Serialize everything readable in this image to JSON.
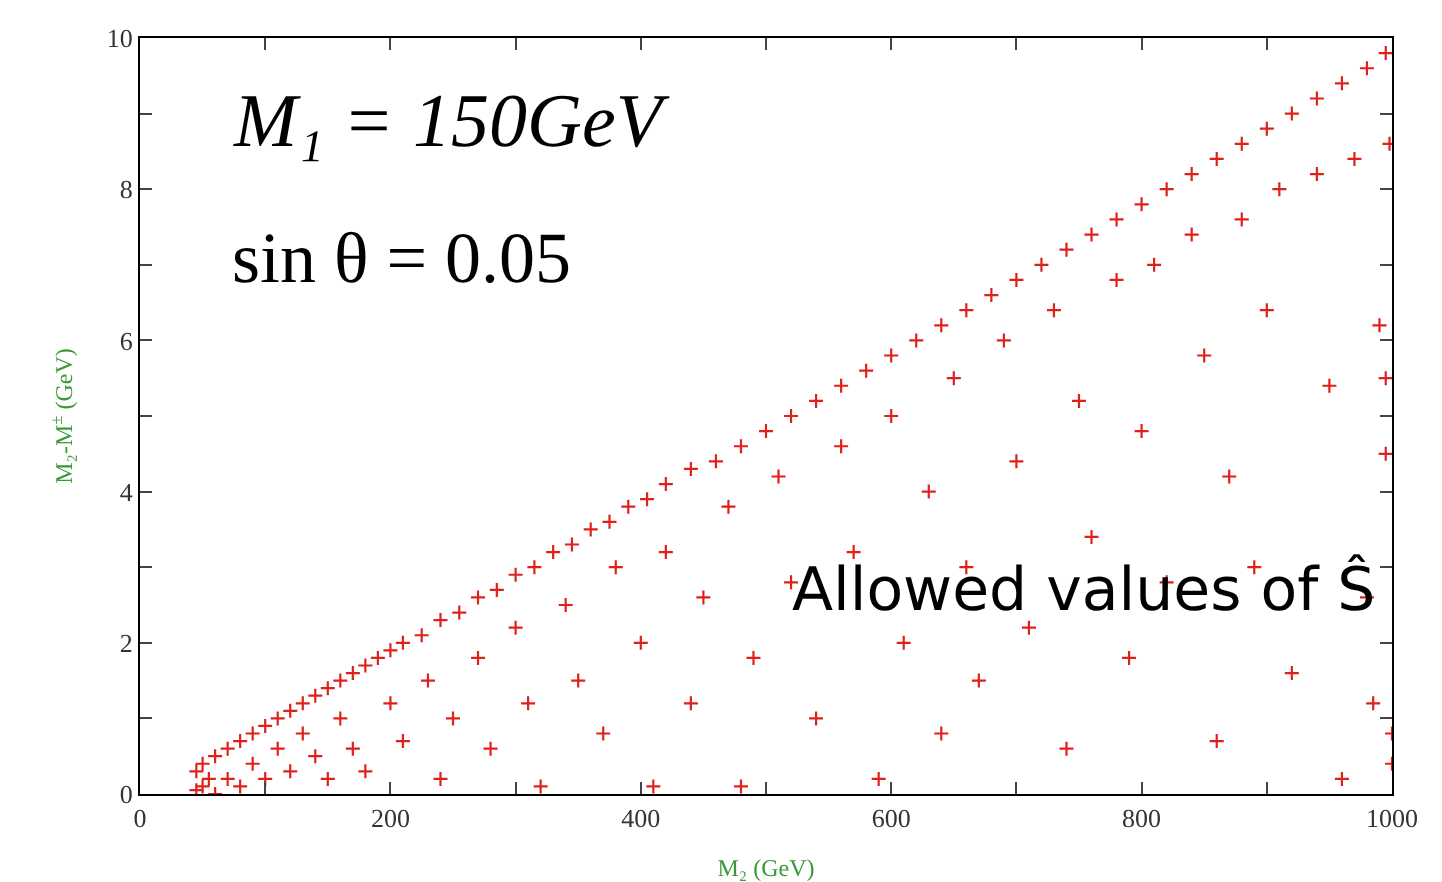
{
  "chart_data": {
    "type": "scatter",
    "xlabel": "M₂ (GeV)",
    "ylabel": "M₂-M$^{±}$ (GeV)",
    "annotations": [
      "M₁ = 150GeV",
      "sin θ = 0.05",
      "Allowed values of Ŝ"
    ],
    "xlim": [
      0,
      1000
    ],
    "ylim": [
      0,
      10
    ],
    "xticks": [
      0,
      {
        "value": 100,
        "label": null
      },
      200,
      {
        "value": 300,
        "label": null
      },
      400,
      {
        "value": 500,
        "label": null
      },
      600,
      {
        "value": 700,
        "label": null
      },
      800,
      {
        "value": 900,
        "label": null
      },
      1000
    ],
    "yticks": [
      0,
      {
        "value": 1,
        "label": null
      },
      2,
      {
        "value": 3,
        "label": null
      },
      4,
      {
        "value": 5,
        "label": null
      },
      6,
      {
        "value": 7,
        "label": null
      },
      8,
      {
        "value": 9,
        "label": null
      },
      10
    ],
    "grid": false,
    "marker": "cross",
    "series": [
      {
        "color": "#e0201b",
        "x": [
          45,
          50,
          60,
          70,
          80,
          90,
          100,
          110,
          120,
          130,
          140,
          150,
          160,
          170,
          180,
          190,
          200,
          210,
          225,
          240,
          255,
          270,
          285,
          300,
          315,
          330,
          345,
          360,
          375,
          390,
          405,
          420,
          440,
          460,
          480,
          500,
          520,
          540,
          560,
          580,
          600,
          620,
          640,
          660,
          680,
          700,
          720,
          740,
          760,
          780,
          800,
          820,
          840,
          860,
          880,
          900,
          920,
          940,
          960,
          980,
          995,
          45,
          50,
          55,
          60,
          70,
          80,
          90,
          100,
          110,
          120,
          130,
          140,
          150,
          160,
          170,
          180,
          200,
          210,
          230,
          240,
          250,
          270,
          280,
          300,
          310,
          320,
          340,
          350,
          370,
          380,
          400,
          410,
          420,
          440,
          450,
          470,
          480,
          490,
          510,
          520,
          540,
          560,
          570,
          590,
          600,
          610,
          630,
          640,
          650,
          660,
          670,
          690,
          700,
          710,
          730,
          740,
          750,
          760,
          780,
          790,
          800,
          810,
          820,
          840,
          850,
          860,
          870,
          880,
          890,
          900,
          910,
          920,
          940,
          950,
          960,
          970,
          980,
          990,
          995,
          998,
          1000,
          1000,
          995,
          985
        ],
        "values": [
          0.3,
          0.4,
          0.5,
          0.6,
          0.7,
          0.8,
          0.9,
          1.0,
          1.1,
          1.2,
          1.3,
          1.4,
          1.5,
          1.6,
          1.7,
          1.8,
          1.9,
          2.0,
          2.1,
          2.3,
          2.4,
          2.6,
          2.7,
          2.9,
          3.0,
          3.2,
          3.3,
          3.5,
          3.6,
          3.8,
          3.9,
          4.1,
          4.3,
          4.4,
          4.6,
          4.8,
          5.0,
          5.2,
          5.4,
          5.6,
          5.8,
          6.0,
          6.2,
          6.4,
          6.6,
          6.8,
          7.0,
          7.2,
          7.4,
          7.6,
          7.8,
          8.0,
          8.2,
          8.4,
          8.6,
          8.8,
          9.0,
          9.2,
          9.4,
          9.6,
          9.8,
          0.05,
          0.1,
          0.2,
          0.0,
          0.2,
          0.1,
          0.4,
          0.2,
          0.6,
          0.3,
          0.8,
          0.5,
          0.2,
          1.0,
          0.6,
          0.3,
          1.2,
          0.7,
          1.5,
          0.2,
          1.0,
          1.8,
          0.6,
          2.2,
          1.2,
          0.1,
          2.5,
          1.5,
          0.8,
          3.0,
          2.0,
          0.1,
          3.2,
          1.2,
          2.6,
          3.8,
          0.1,
          1.8,
          4.2,
          2.8,
          1.0,
          4.6,
          3.2,
          0.2,
          5.0,
          2.0,
          4.0,
          0.8,
          5.5,
          3.0,
          1.5,
          6.0,
          4.4,
          2.2,
          6.4,
          0.6,
          5.2,
          3.4,
          6.8,
          1.8,
          4.8,
          7.0,
          2.8,
          7.4,
          5.8,
          0.7,
          4.2,
          7.6,
          3.0,
          6.4,
          8.0,
          1.6,
          8.2,
          5.4,
          0.2,
          8.4,
          2.6,
          6.2,
          4.5,
          8.6,
          0.8,
          0.4,
          5.5,
          1.2
        ]
      }
    ]
  }
}
